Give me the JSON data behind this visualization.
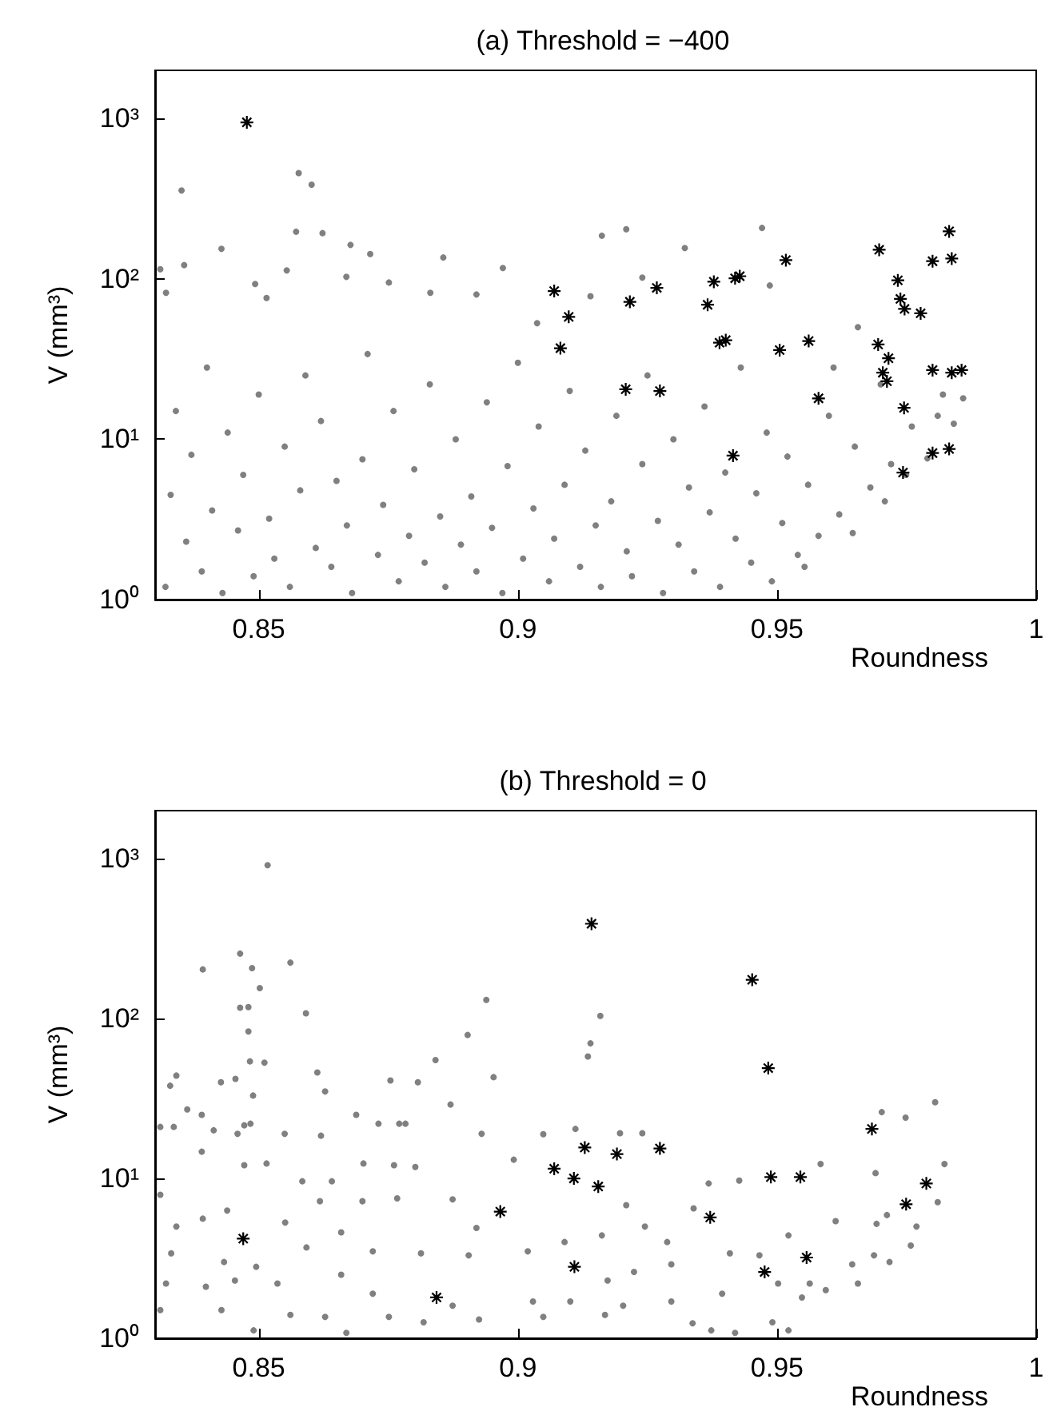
{
  "chart_data": [
    {
      "type": "scatter",
      "title": "(a) Threshold = −400",
      "xlabel": "Roundness",
      "ylabel": "V (mm³)",
      "xlim": [
        0.83,
        1
      ],
      "xticks": [
        0.85,
        0.9,
        0.95,
        1
      ],
      "ylim": [
        1,
        2000
      ],
      "yticks": [
        {
          "value": 1,
          "label": "10⁰"
        },
        {
          "value": 10,
          "label": "10¹"
        },
        {
          "value": 100,
          "label": "10²"
        },
        {
          "value": 1000,
          "label": "10³"
        }
      ],
      "log": "y",
      "series": [
        {
          "color": "#808080",
          "marker": "circle",
          "x": [
            0.8351,
            0.8577,
            0.8602,
            0.8572,
            0.8623,
            0.8428,
            0.8677,
            0.8715,
            0.8856,
            0.8971,
            0.8356,
            0.831,
            0.8493,
            0.8515,
            0.8554,
            0.8669,
            0.8321,
            0.8751,
            0.892,
            0.8831,
            0.9162,
            0.9209,
            0.9471,
            0.9322,
            0.924,
            0.914,
            0.9486,
            0.9037,
            0.9656,
            0.9609,
            0.9859,
            0.9841,
            0.982,
            0.9553,
            0.9646,
            0.9708,
            0.9749,
            0.979,
            0.981,
            0.832,
            0.833,
            0.834,
            0.836,
            0.837,
            0.839,
            0.84,
            0.841,
            0.843,
            0.844,
            0.846,
            0.847,
            0.849,
            0.85,
            0.852,
            0.853,
            0.855,
            0.856,
            0.858,
            0.859,
            0.861,
            0.862,
            0.864,
            0.865,
            0.867,
            0.868,
            0.87,
            0.871,
            0.873,
            0.874,
            0.876,
            0.877,
            0.879,
            0.88,
            0.882,
            0.883,
            0.885,
            0.886,
            0.888,
            0.889,
            0.891,
            0.892,
            0.894,
            0.895,
            0.897,
            0.898,
            0.9,
            0.901,
            0.903,
            0.904,
            0.906,
            0.907,
            0.909,
            0.91,
            0.912,
            0.913,
            0.915,
            0.916,
            0.918,
            0.919,
            0.921,
            0.922,
            0.924,
            0.925,
            0.927,
            0.928,
            0.93,
            0.931,
            0.933,
            0.934,
            0.936,
            0.937,
            0.939,
            0.94,
            0.942,
            0.943,
            0.945,
            0.946,
            0.948,
            0.949,
            0.951,
            0.952,
            0.954,
            0.956,
            0.958,
            0.96,
            0.962,
            0.965,
            0.968,
            0.97,
            0.972,
            0.976
          ],
          "values": [
            356,
            457,
            387,
            197,
            193,
            154,
            163,
            143,
            136,
            117,
            122,
            115,
            93,
            76,
            113,
            103,
            82,
            95,
            80,
            82,
            186,
            204,
            208,
            156,
            102,
            78,
            91,
            53,
            50,
            28,
            18,
            12.5,
            19,
            1.6,
            2.6,
            4.1,
            6,
            7.6,
            14,
            1.2,
            4.5,
            15,
            2.3,
            8,
            1.5,
            28,
            3.6,
            1.1,
            11,
            2.7,
            6,
            1.4,
            19,
            3.2,
            1.8,
            9,
            1.2,
            4.8,
            25,
            2.1,
            13,
            1.6,
            5.5,
            2.9,
            1.1,
            7.5,
            34,
            1.9,
            3.9,
            15,
            1.3,
            2.5,
            6.5,
            1.7,
            22,
            3.3,
            1.2,
            10,
            2.2,
            4.4,
            1.5,
            17,
            2.8,
            1.1,
            6.8,
            30,
            1.8,
            3.7,
            12,
            1.3,
            2.4,
            5.2,
            20,
            1.6,
            8.5,
            2.9,
            1.2,
            4.1,
            14,
            2,
            1.4,
            7,
            25,
            3.1,
            1.1,
            10,
            2.2,
            5,
            1.5,
            16,
            3.5,
            1.2,
            6.2,
            2.4,
            28,
            1.7,
            4.6,
            11,
            1.3,
            3,
            7.8,
            1.9,
            5.2,
            2.5,
            14,
            3.4,
            9,
            5,
            22,
            7,
            12
          ]
        },
        {
          "color": "#000000",
          "marker": "star",
          "x": [
            0.8477,
            0.907,
            0.9098,
            0.9082,
            0.9216,
            0.9208,
            0.9268,
            0.9274,
            0.9366,
            0.9378,
            0.9389,
            0.9401,
            0.9419,
            0.9428,
            0.9415,
            0.9505,
            0.9517,
            0.9561,
            0.958,
            0.9697,
            0.9695,
            0.9733,
            0.9738,
            0.9746,
            0.9777,
            0.9715,
            0.9704,
            0.9712,
            0.9745,
            0.98,
            0.9832,
            0.9837,
            0.98,
            0.9837,
            0.9856,
            0.98,
            0.9832,
            0.9743
          ],
          "values": [
            948,
            84,
            58,
            37,
            72,
            20.5,
            88,
            20,
            69,
            96,
            40,
            41.5,
            101,
            104,
            7.9,
            36,
            131,
            41,
            18,
            152,
            39,
            98,
            75,
            65,
            61,
            32,
            26,
            23,
            15.7,
            129,
            198,
            134,
            27,
            26,
            27,
            8.2,
            8.7,
            6.2
          ]
        }
      ]
    },
    {
      "type": "scatter",
      "title": "(b) Threshold = 0",
      "xlabel": "Roundness",
      "ylabel": "V (mm³)",
      "xlim": [
        0.83,
        1
      ],
      "xticks": [
        0.85,
        0.9,
        0.95,
        1
      ],
      "ylim": [
        1,
        2000
      ],
      "yticks": [
        {
          "value": 1,
          "label": "10⁰"
        },
        {
          "value": 10,
          "label": "10¹"
        },
        {
          "value": 100,
          "label": "10²"
        },
        {
          "value": 1000,
          "label": "10³"
        }
      ],
      "log": "y",
      "series": [
        {
          "color": "#808080",
          "marker": "circle",
          "x": [
            0.8517,
            0.8464,
            0.8487,
            0.8561,
            0.8392,
            0.8502,
            0.8464,
            0.848,
            0.8591,
            0.8939,
            0.8903,
            0.848,
            0.8483,
            0.8511,
            0.8341,
            0.8329,
            0.8613,
            0.8489,
            0.8427,
            0.8455,
            0.8841,
            0.8807,
            0.8754,
            0.8953,
            0.887,
            0.8628,
            0.8362,
            0.839,
            0.831,
            0.8336,
            0.8413,
            0.855,
            0.862,
            0.8459,
            0.8472,
            0.8484,
            0.8688,
            0.8731,
            0.8771,
            0.8783,
            0.893,
            0.839,
            0.8472,
            0.8515,
            0.8702,
            0.8761,
            0.8802,
            0.8992,
            0.8641,
            0.8584,
            0.831,
            0.8439,
            0.8618,
            0.87,
            0.8767,
            0.8874,
            0.8341,
            0.8392,
            0.8551,
            0.8659,
            0.892,
            0.8331,
            0.8433,
            0.8495,
            0.8592,
            0.872,
            0.8813,
            0.8905,
            0.8321,
            0.8398,
            0.8454,
            0.8536,
            0.8659,
            0.872,
            0.8874,
            0.831,
            0.8428,
            0.8561,
            0.8628,
            0.8751,
            0.8818,
            0.8925,
            0.849,
            0.8669,
            0.9159,
            0.914,
            0.9135,
            0.9805,
            0.9702,
            0.9748,
            0.9111,
            0.9197,
            0.924,
            0.9049,
            0.9584,
            0.969,
            0.9823,
            0.9427,
            0.9368,
            0.9209,
            0.9339,
            0.9245,
            0.9162,
            0.9522,
            0.9613,
            0.9692,
            0.9712,
            0.9758,
            0.9769,
            0.981,
            0.9019,
            0.909,
            0.9288,
            0.9409,
            0.9466,
            0.9645,
            0.9687,
            0.9717,
            0.9656,
            0.9594,
            0.9548,
            0.9563,
            0.9502,
            0.9224,
            0.9296,
            0.9173,
            0.9029,
            0.9101,
            0.9203,
            0.9296,
            0.9394,
            0.9049,
            0.9168,
            0.9337,
            0.9491,
            0.9522,
            0.9419,
            0.9373
          ],
          "values": [
            912,
            255,
            207,
            224,
            203,
            155,
            117,
            118,
            108,
            131,
            79,
            83,
            54,
            53,
            44,
            38,
            46,
            33,
            40,
            42,
            55,
            40,
            41,
            43,
            29,
            35,
            27,
            25,
            21,
            21,
            20,
            19,
            18.5,
            19,
            21.5,
            22,
            25,
            22,
            22,
            22,
            19,
            14.7,
            12.1,
            12.4,
            12.4,
            12.1,
            11.8,
            13.1,
            9.6,
            9.6,
            7.9,
            6.3,
            7.2,
            7.2,
            7.5,
            7.4,
            5,
            5.6,
            5.3,
            4.6,
            4.9,
            3.4,
            3,
            2.8,
            3.7,
            3.5,
            3.4,
            3.3,
            2.2,
            2.1,
            2.3,
            2.2,
            2.5,
            1.9,
            1.6,
            1.5,
            1.5,
            1.4,
            1.36,
            1.36,
            1.26,
            1.31,
            1.12,
            1.08,
            104,
            70,
            58,
            30,
            26,
            24,
            20.4,
            19.2,
            19.2,
            18.9,
            12.3,
            10.8,
            12.3,
            9.7,
            9.3,
            6.8,
            6.5,
            5,
            4.4,
            4.4,
            5.4,
            5.2,
            5.9,
            3.8,
            5,
            7.1,
            3.5,
            4,
            4,
            3.4,
            3.3,
            2.9,
            3.3,
            3,
            2.2,
            2,
            1.8,
            2.2,
            2.2,
            2.6,
            2.9,
            2.3,
            1.7,
            1.7,
            1.6,
            1.7,
            1.9,
            1.36,
            1.4,
            1.24,
            1.26,
            1.12,
            1.08,
            1.12
          ]
        },
        {
          "color": "#000000",
          "marker": "star",
          "x": [
            0.847,
            0.8966,
            0.8843,
            0.9142,
            0.9452,
            0.9483,
            0.907,
            0.9108,
            0.9129,
            0.9155,
            0.9191,
            0.9274,
            0.9371,
            0.9109,
            0.9476,
            0.9488,
            0.9545,
            0.9557,
            0.9683,
            0.9749,
            0.9788
          ],
          "values": [
            4.2,
            6.2,
            1.8,
            392,
            175,
            49,
            11.5,
            10,
            15.6,
            8.9,
            14.2,
            15.4,
            5.7,
            2.8,
            2.6,
            10.2,
            10.2,
            3.2,
            20.4,
            6.9,
            9.3
          ]
        }
      ]
    }
  ]
}
